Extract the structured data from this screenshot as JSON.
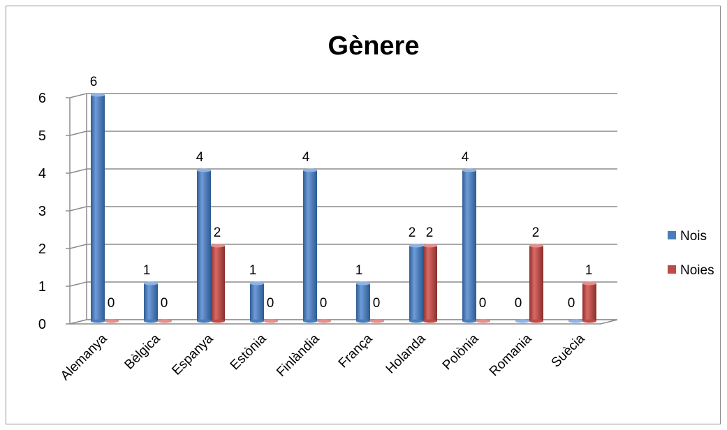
{
  "chart_data": {
    "type": "bar",
    "title": "Gènere",
    "categories": [
      "Alemanya",
      "Bèlgica",
      "Espanya",
      "Estònia",
      "Finlàndia",
      "França",
      "Holanda",
      "Polònia",
      "Romania",
      "Suècia"
    ],
    "series": [
      {
        "name": "Nois",
        "values": [
          6,
          1,
          4,
          1,
          4,
          1,
          2,
          4,
          0,
          0
        ],
        "color": "#4a7ebb"
      },
      {
        "name": "Noies",
        "values": [
          0,
          0,
          2,
          0,
          0,
          0,
          2,
          0,
          2,
          1
        ],
        "color": "#be4b48"
      }
    ],
    "yticks": [
      "0",
      "1",
      "2",
      "3",
      "4",
      "5",
      "6"
    ],
    "ylim": [
      0,
      6
    ],
    "xlabel": "",
    "ylabel": "",
    "grid": true,
    "legend": "right",
    "data_labels": true
  }
}
